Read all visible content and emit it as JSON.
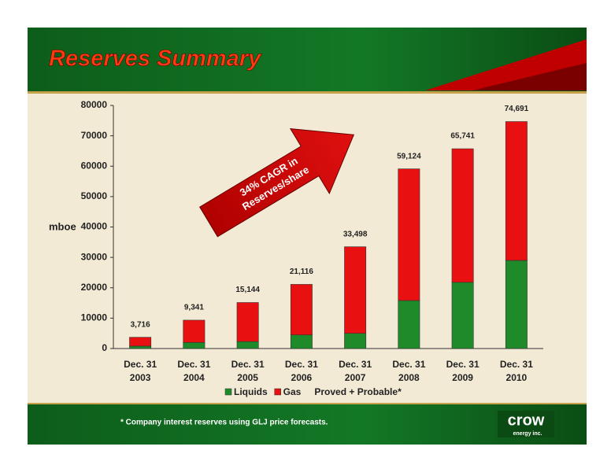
{
  "chart_data": {
    "type": "stacked-bar",
    "title": "Reserves Summary",
    "y_label": "mboe",
    "categories": [
      [
        "Dec. 31",
        "2003"
      ],
      [
        "Dec. 31",
        "2004"
      ],
      [
        "Dec. 31",
        "2005"
      ],
      [
        "Dec. 31",
        "2006"
      ],
      [
        "Dec. 31",
        "2007"
      ],
      [
        "Dec. 31",
        "2008"
      ],
      [
        "Dec. 31",
        "2009"
      ],
      [
        "Dec. 31",
        "2010"
      ]
    ],
    "series": [
      {
        "name": "Liquids",
        "color": "#1e8a2a",
        "values": [
          800,
          2000,
          2300,
          4500,
          5000,
          15800,
          21800,
          29000
        ]
      },
      {
        "name": "Gas",
        "color": "#e81010",
        "values": [
          2916,
          7341,
          12844,
          16616,
          28498,
          43324,
          43941,
          45691
        ]
      }
    ],
    "totals": {
      "values": [
        3716,
        9341,
        15144,
        21116,
        33498,
        59124,
        65741,
        74691
      ],
      "value_labels": [
        "3,716",
        "9,341",
        "15,144",
        "21,116",
        "33,498",
        "59,124",
        "65,741",
        "74,691"
      ]
    },
    "legend_note": "Proved + Probable*",
    "annotation": [
      "34% CAGR in",
      "Reserves/share"
    ],
    "ylim": [
      0,
      80000
    ],
    "yticks": [
      0,
      10000,
      20000,
      30000,
      40000,
      50000,
      60000,
      70000,
      80000
    ],
    "footnote": "* Company interest reserves using GLJ price forecasts.",
    "logo": [
      "crow",
      "energy inc."
    ]
  }
}
